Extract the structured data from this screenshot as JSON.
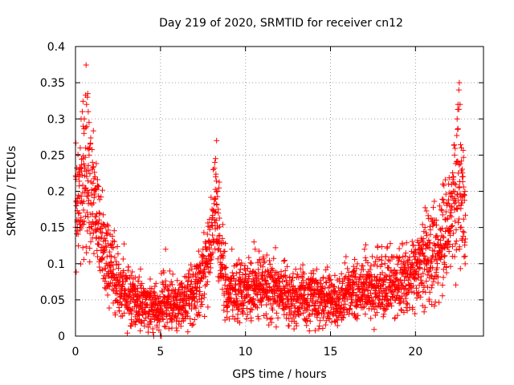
{
  "chart_data": {
    "type": "scatter",
    "title": "Day 219 of 2020, SRMTID for receiver cn12",
    "xlabel": "GPS time / hours",
    "ylabel": "SRMTID / TECUs",
    "xlim": [
      0,
      24
    ],
    "ylim": [
      0,
      0.4
    ],
    "x_ticks": [
      0,
      5,
      10,
      15,
      20
    ],
    "x_tick_labels": [
      "0",
      "5",
      "10",
      "15",
      "20"
    ],
    "y_ticks": [
      0,
      0.05,
      0.1,
      0.15,
      0.2,
      0.25,
      0.3,
      0.35,
      0.4
    ],
    "y_tick_labels": [
      "0",
      "0.05",
      "0.1",
      "0.15",
      "0.2",
      "0.25",
      "0.3",
      "0.35",
      "0.4"
    ],
    "grid": true,
    "marker": "plus",
    "series": [
      {
        "name": "SRMTID",
        "color": "#ff0000",
        "profile": [
          [
            0.0,
            0.17
          ],
          [
            0.3,
            0.2
          ],
          [
            0.6,
            0.23
          ],
          [
            0.9,
            0.2
          ],
          [
            1.2,
            0.17
          ],
          [
            1.5,
            0.13
          ],
          [
            2.0,
            0.1
          ],
          [
            2.5,
            0.07
          ],
          [
            3.0,
            0.06
          ],
          [
            3.5,
            0.05
          ],
          [
            4.0,
            0.045
          ],
          [
            4.5,
            0.04
          ],
          [
            4.9,
            0.03
          ],
          [
            5.2,
            0.06
          ],
          [
            5.6,
            0.04
          ],
          [
            6.2,
            0.045
          ],
          [
            7.0,
            0.06
          ],
          [
            7.5,
            0.09
          ],
          [
            8.0,
            0.13
          ],
          [
            8.3,
            0.18
          ],
          [
            8.6,
            0.1
          ],
          [
            9.0,
            0.06
          ],
          [
            10.0,
            0.065
          ],
          [
            11.0,
            0.07
          ],
          [
            12.0,
            0.06
          ],
          [
            13.0,
            0.05
          ],
          [
            14.0,
            0.055
          ],
          [
            15.0,
            0.05
          ],
          [
            15.5,
            0.045
          ],
          [
            16.0,
            0.06
          ],
          [
            17.0,
            0.065
          ],
          [
            18.0,
            0.07
          ],
          [
            19.0,
            0.075
          ],
          [
            19.5,
            0.08
          ],
          [
            20.0,
            0.09
          ],
          [
            20.5,
            0.1
          ],
          [
            21.0,
            0.11
          ],
          [
            21.5,
            0.12
          ],
          [
            22.0,
            0.15
          ],
          [
            22.3,
            0.2
          ],
          [
            22.5,
            0.22
          ],
          [
            22.8,
            0.17
          ],
          [
            22.95,
            0.15
          ]
        ],
        "spikes": [
          [
            0.05,
            0.18
          ],
          [
            0.12,
            0.19
          ],
          [
            0.2,
            0.22
          ],
          [
            0.28,
            0.26
          ],
          [
            0.33,
            0.3
          ],
          [
            0.4,
            0.31
          ],
          [
            0.45,
            0.29
          ],
          [
            0.5,
            0.28
          ],
          [
            0.52,
            0.3
          ],
          [
            0.6,
            0.26
          ],
          [
            0.65,
            0.32
          ],
          [
            0.7,
            0.33
          ],
          [
            0.72,
            0.335
          ],
          [
            0.75,
            0.31
          ],
          [
            0.8,
            0.25
          ],
          [
            1.0,
            0.24
          ],
          [
            1.15,
            0.22
          ],
          [
            8.1,
            0.23
          ],
          [
            8.2,
            0.24
          ],
          [
            8.25,
            0.22
          ],
          [
            8.3,
            0.27
          ],
          [
            8.35,
            0.2
          ],
          [
            8.4,
            0.17
          ],
          [
            21.95,
            0.21
          ],
          [
            22.3,
            0.25
          ],
          [
            22.45,
            0.3
          ],
          [
            22.5,
            0.32
          ],
          [
            22.55,
            0.34
          ],
          [
            22.58,
            0.35
          ],
          [
            22.62,
            0.32
          ],
          [
            22.7,
            0.26
          ],
          [
            22.75,
            0.22
          ],
          [
            5.0,
            0.0
          ],
          [
            5.05,
            0.0
          ],
          [
            4.6,
            0.0
          ],
          [
            4.55,
            0.01
          ],
          [
            5.3,
            0.12
          ],
          [
            7.5,
            0.12
          ],
          [
            9.2,
            0.12
          ],
          [
            10.5,
            0.13
          ],
          [
            17.0,
            0.12
          ],
          [
            18.2,
            0.1
          ]
        ]
      }
    ]
  }
}
